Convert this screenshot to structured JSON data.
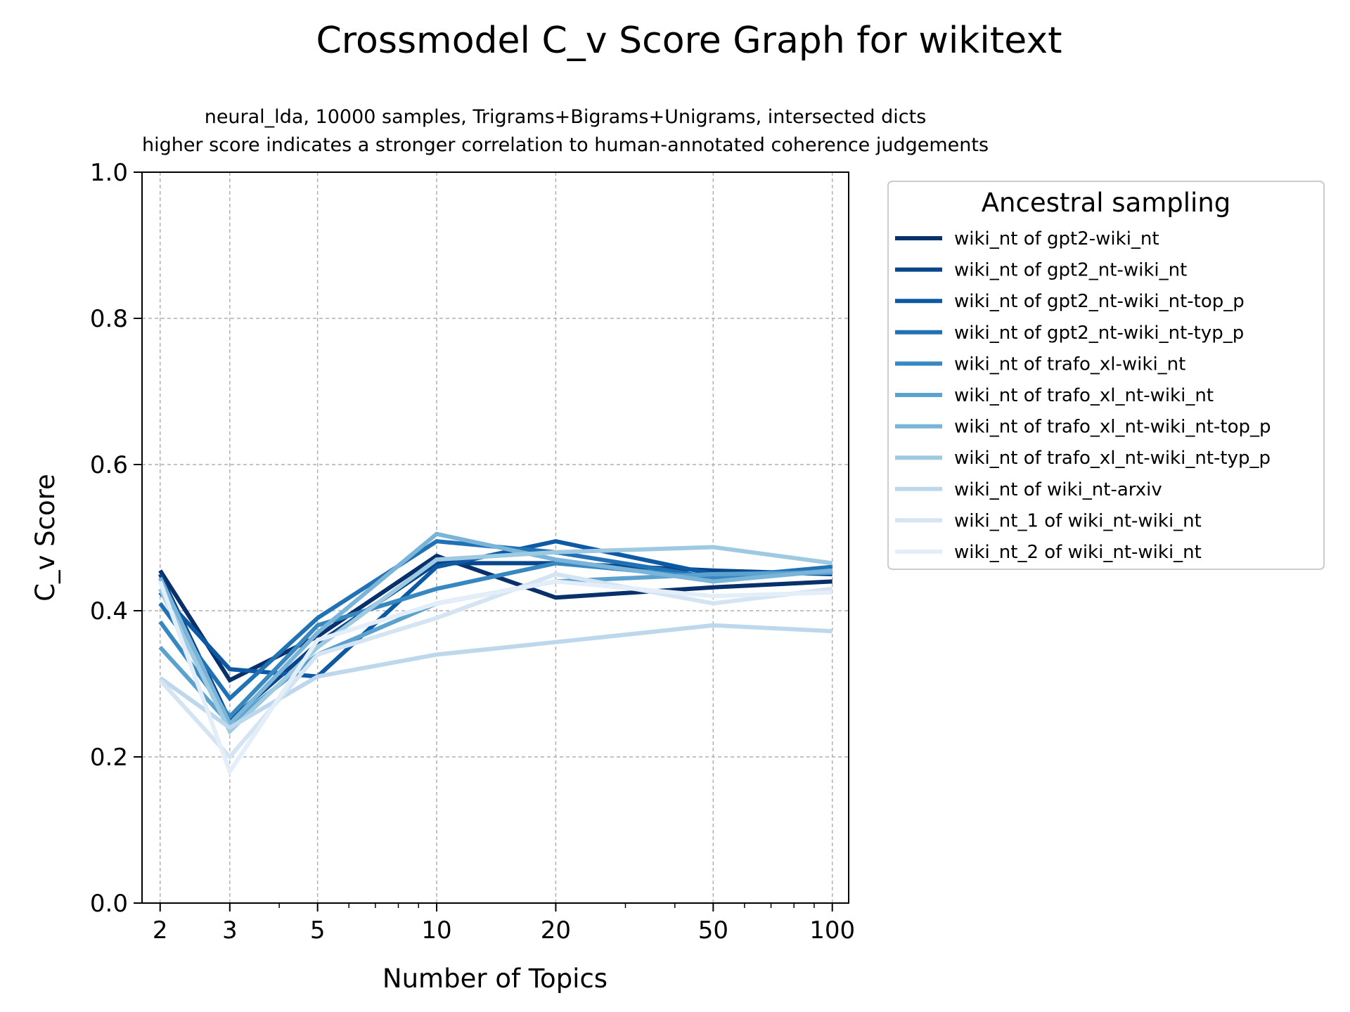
{
  "chart_data": {
    "type": "line",
    "title": "Crossmodel C_v Score Graph for wikitext",
    "subtitle_lines": [
      "neural_lda, 10000 samples, Trigrams+Bigrams+Unigrams, intersected dicts",
      "higher score indicates a stronger correlation to human-annotated coherence judgements"
    ],
    "xlabel": "Number of Topics",
    "ylabel": "C_v Score",
    "x_scale": "log",
    "x": [
      2,
      3,
      5,
      10,
      20,
      50,
      100
    ],
    "x_tick_labels": [
      "2",
      "3",
      "5",
      "10",
      "20",
      "50",
      "100"
    ],
    "ylim": [
      0.0,
      1.0
    ],
    "y_ticks": [
      "0.0",
      "0.2",
      "0.4",
      "0.6",
      "0.8",
      "1.0"
    ],
    "grid": true,
    "legend_title": "Ancestral sampling",
    "legend_position": "outside-right",
    "series": [
      {
        "name": "wiki_nt of gpt2-wiki_nt",
        "color": "#08306b",
        "values": [
          0.455,
          0.305,
          0.365,
          0.475,
          0.418,
          0.432,
          0.44
        ]
      },
      {
        "name": "wiki_nt of gpt2_nt-wiki_nt",
        "color": "#08468b",
        "values": [
          0.45,
          0.25,
          0.355,
          0.465,
          0.465,
          0.455,
          0.45
        ]
      },
      {
        "name": "wiki_nt of gpt2_nt-wiki_nt-top_p",
        "color": "#0e59a3",
        "values": [
          0.425,
          0.32,
          0.31,
          0.46,
          0.495,
          0.45,
          0.455
        ]
      },
      {
        "name": "wiki_nt of gpt2_nt-wiki_nt-typ_p",
        "color": "#2171b5",
        "values": [
          0.41,
          0.28,
          0.39,
          0.495,
          0.48,
          0.445,
          0.46
        ]
      },
      {
        "name": "wiki_nt of trafo_xl-wiki_nt",
        "color": "#3787c0",
        "values": [
          0.385,
          0.255,
          0.38,
          0.43,
          0.465,
          0.445,
          0.455
        ]
      },
      {
        "name": "wiki_nt of trafo_xl_nt-wiki_nt",
        "color": "#5ca2cf",
        "values": [
          0.35,
          0.245,
          0.34,
          0.41,
          0.44,
          0.45,
          0.452
        ]
      },
      {
        "name": "wiki_nt of trafo_xl_nt-wiki_nt-top_p",
        "color": "#7ab5d9",
        "values": [
          0.445,
          0.245,
          0.37,
          0.505,
          0.47,
          0.44,
          0.455
        ]
      },
      {
        "name": "wiki_nt of trafo_xl_nt-wiki_nt-typ_p",
        "color": "#9ecae1",
        "values": [
          0.43,
          0.235,
          0.35,
          0.47,
          0.48,
          0.487,
          0.465
        ]
      },
      {
        "name": "wiki_nt of wiki_nt-arxiv",
        "color": "#bdd7ec",
        "values": [
          0.308,
          0.24,
          0.31,
          0.34,
          0.357,
          0.38,
          0.372
        ]
      },
      {
        "name": "wiki_nt_1 of wiki_nt-wiki_nt",
        "color": "#d4e4f3",
        "values": [
          0.305,
          0.2,
          0.34,
          0.39,
          0.45,
          0.41,
          0.43
        ]
      },
      {
        "name": "wiki_nt_2 of wiki_nt-wiki_nt",
        "color": "#e3eef9",
        "values": [
          0.44,
          0.18,
          0.36,
          0.41,
          0.44,
          0.42,
          0.425
        ]
      }
    ]
  }
}
